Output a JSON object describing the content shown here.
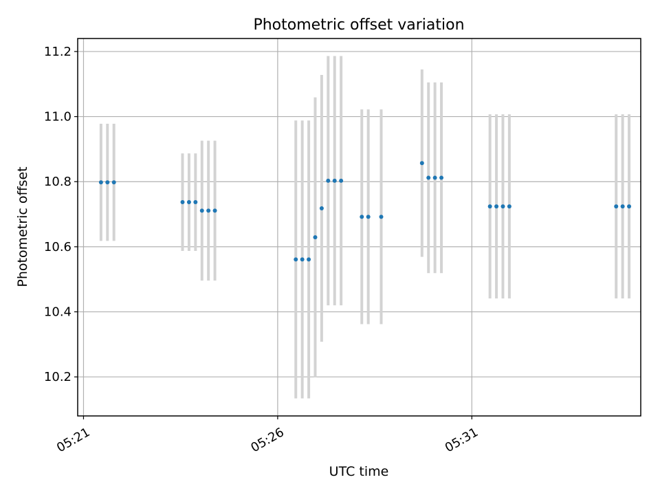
{
  "chart_data": {
    "type": "scatter",
    "title": "Photometric offset variation",
    "xlabel": "UTC time",
    "ylabel": "Photometric offset",
    "xlim": [
      "05:20:51",
      "05:35:21"
    ],
    "ylim": [
      10.08,
      11.24
    ],
    "x_ticks": [
      "05:21",
      "05:26",
      "05:31"
    ],
    "y_ticks": [
      10.2,
      10.4,
      10.6,
      10.8,
      11.0,
      11.2
    ],
    "grid": true,
    "marker_color": "#1f77b4",
    "errorbar_color": "#d3d3d3",
    "points": [
      {
        "x": "05:21:27",
        "y": 10.798,
        "err": 0.18
      },
      {
        "x": "05:21:37",
        "y": 10.798,
        "err": 0.18
      },
      {
        "x": "05:21:47",
        "y": 10.798,
        "err": 0.18
      },
      {
        "x": "05:23:33",
        "y": 10.737,
        "err": 0.15
      },
      {
        "x": "05:23:43",
        "y": 10.737,
        "err": 0.15
      },
      {
        "x": "05:23:53",
        "y": 10.737,
        "err": 0.15
      },
      {
        "x": "05:24:03",
        "y": 10.711,
        "err": 0.215
      },
      {
        "x": "05:24:13",
        "y": 10.711,
        "err": 0.215
      },
      {
        "x": "05:24:23",
        "y": 10.711,
        "err": 0.215
      },
      {
        "x": "05:26:28",
        "y": 10.561,
        "err": 0.427
      },
      {
        "x": "05:26:38",
        "y": 10.561,
        "err": 0.427
      },
      {
        "x": "05:26:48",
        "y": 10.561,
        "err": 0.427
      },
      {
        "x": "05:26:58",
        "y": 10.629,
        "err": 0.43
      },
      {
        "x": "05:27:08",
        "y": 10.718,
        "err": 0.41
      },
      {
        "x": "05:27:18",
        "y": 10.803,
        "err": 0.383
      },
      {
        "x": "05:27:28",
        "y": 10.803,
        "err": 0.383
      },
      {
        "x": "05:27:38",
        "y": 10.803,
        "err": 0.383
      },
      {
        "x": "05:28:10",
        "y": 10.692,
        "err": 0.33
      },
      {
        "x": "05:28:20",
        "y": 10.692,
        "err": 0.33
      },
      {
        "x": "05:28:40",
        "y": 10.692,
        "err": 0.33
      },
      {
        "x": "05:29:43",
        "y": 10.857,
        "err": 0.288
      },
      {
        "x": "05:29:53",
        "y": 10.812,
        "err": 0.293
      },
      {
        "x": "05:30:03",
        "y": 10.812,
        "err": 0.293
      },
      {
        "x": "05:30:13",
        "y": 10.812,
        "err": 0.293
      },
      {
        "x": "05:31:28",
        "y": 10.724,
        "err": 0.283
      },
      {
        "x": "05:31:38",
        "y": 10.724,
        "err": 0.283
      },
      {
        "x": "05:31:48",
        "y": 10.724,
        "err": 0.283
      },
      {
        "x": "05:31:58",
        "y": 10.724,
        "err": 0.283
      },
      {
        "x": "05:34:43",
        "y": 10.724,
        "err": 0.283
      },
      {
        "x": "05:34:53",
        "y": 10.724,
        "err": 0.283
      },
      {
        "x": "05:35:03",
        "y": 10.724,
        "err": 0.283
      }
    ]
  }
}
